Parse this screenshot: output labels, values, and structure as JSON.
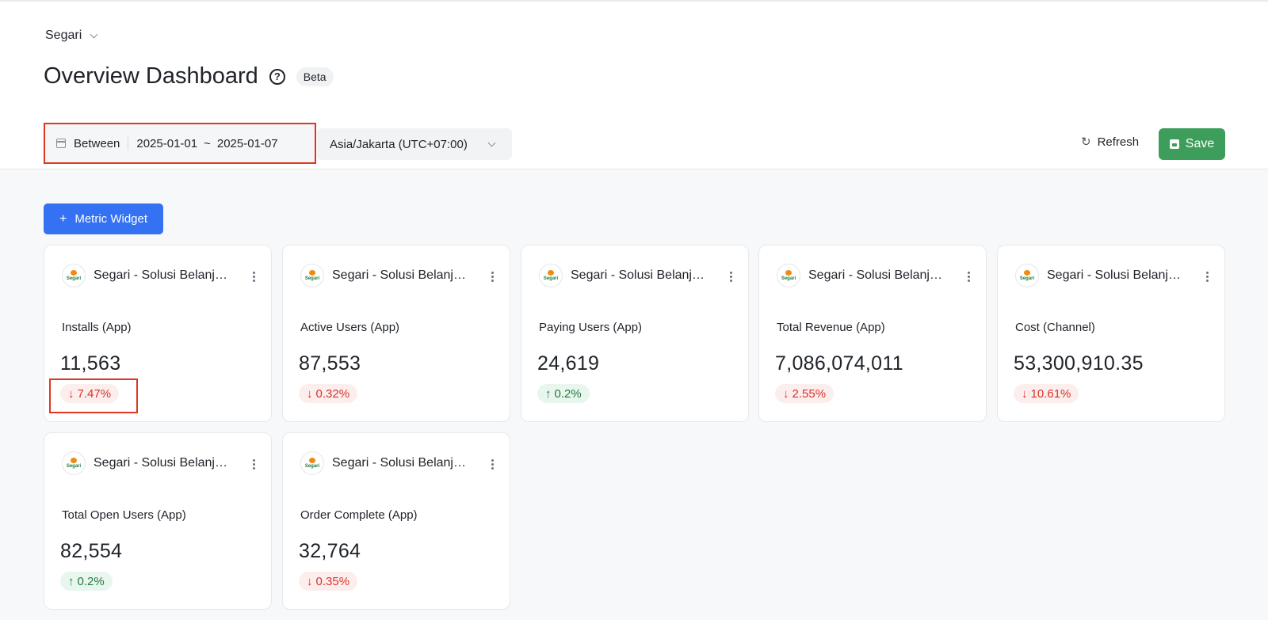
{
  "app_switcher": {
    "label": "Segari"
  },
  "page": {
    "title": "Overview Dashboard",
    "badge": "Beta"
  },
  "filters": {
    "range_mode": "Between",
    "start_date": "2025-01-01",
    "separator": "~",
    "end_date": "2025-01-07",
    "timezone": "Asia/Jakarta (UTC+07:00)"
  },
  "actions": {
    "refresh_label": "Refresh",
    "save_label": "Save",
    "add_widget_label": "Metric Widget"
  },
  "brand": {
    "logo_word": "Segari"
  },
  "colors": {
    "primary": "#3471f3",
    "save": "#3d9e5b",
    "down": "#d8322a",
    "up": "#1f7a3f",
    "highlight": "#e03524"
  },
  "cards": [
    {
      "app": "Segari - Solusi Belanja Harian",
      "metric": "Installs (App)",
      "value": "11,563",
      "change": "7.47%",
      "direction": "down"
    },
    {
      "app": "Segari - Solusi Belanja Harian",
      "metric": "Active Users (App)",
      "value": "87,553",
      "change": "0.32%",
      "direction": "down"
    },
    {
      "app": "Segari - Solusi Belanja Harian",
      "metric": "Paying Users (App)",
      "value": "24,619",
      "change": "0.2%",
      "direction": "up"
    },
    {
      "app": "Segari - Solusi Belanja Harian",
      "metric": "Total Revenue (App)",
      "value": "7,086,074,011",
      "change": "2.55%",
      "direction": "down"
    },
    {
      "app": "Segari - Solusi Belanja Harian",
      "metric": "Cost (Channel)",
      "value": "53,300,910.35",
      "change": "10.61%",
      "direction": "down"
    },
    {
      "app": "Segari - Solusi Belanja Harian",
      "metric": "Total Open Users (App)",
      "value": "82,554",
      "change": "0.2%",
      "direction": "up"
    },
    {
      "app": "Segari - Solusi Belanja Harian",
      "metric": "Order Complete (App)",
      "value": "32,764",
      "change": "0.35%",
      "direction": "down"
    }
  ]
}
